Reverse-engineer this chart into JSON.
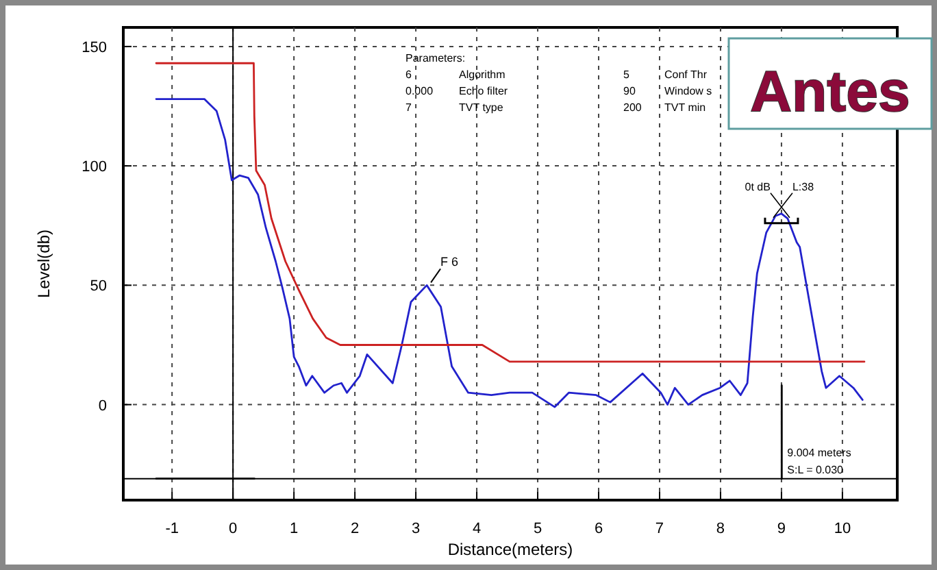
{
  "chart_data": {
    "type": "line",
    "xlabel": "Distance(meters)",
    "ylabel": "Level(db)",
    "xlim": [
      -1.8,
      10.9
    ],
    "ylim": [
      -40,
      158
    ],
    "xticks": [
      -1,
      0,
      1,
      2,
      3,
      4,
      5,
      6,
      7,
      8,
      9,
      10
    ],
    "yticks": [
      0,
      50,
      100,
      150
    ],
    "grid": true,
    "line_style": "solid",
    "marker": "none",
    "series": [
      {
        "color": "#2222cc",
        "x": [
          -1.26,
          -0.47,
          -0.27,
          -0.13,
          -0.02,
          0.11,
          0.25,
          0.41,
          0.54,
          0.7,
          0.81,
          0.93,
          1.0,
          1.08,
          1.2,
          1.3,
          1.5,
          1.65,
          1.78,
          1.87,
          2.08,
          2.2,
          2.62,
          2.77,
          2.92,
          3.18,
          3.41,
          3.59,
          3.86,
          4.24,
          4.54,
          4.91,
          5.28,
          5.51,
          5.96,
          6.19,
          6.72,
          7.02,
          7.13,
          7.25,
          7.47,
          7.7,
          7.99,
          8.15,
          8.33,
          8.44,
          8.53,
          8.6,
          8.75,
          8.9,
          9.0,
          9.1,
          9.25,
          9.3,
          9.5,
          9.66,
          9.73,
          9.95,
          10.18,
          10.33
        ],
        "values": [
          128,
          128,
          123,
          111,
          94,
          96,
          95,
          88,
          74,
          60,
          49,
          36,
          20,
          16,
          8,
          12,
          5,
          8,
          9,
          5,
          12,
          21,
          9,
          25,
          43,
          50,
          41,
          16,
          5,
          4,
          5,
          5,
          -1,
          5,
          4,
          1,
          13,
          5,
          0,
          7,
          0,
          4,
          7,
          10,
          4,
          9,
          37,
          55,
          72,
          79,
          80,
          78,
          68,
          66,
          37,
          14,
          7,
          12,
          7,
          2
        ]
      },
      {
        "color": "#cc2222",
        "x": [
          -1.26,
          0.34,
          0.35,
          0.38,
          0.52,
          0.63,
          0.86,
          1.08,
          1.31,
          1.53,
          1.76,
          4.09,
          4.54,
          10.36
        ],
        "values": [
          143,
          143,
          121,
          98,
          92,
          78,
          60,
          48,
          36,
          28,
          25,
          25,
          18,
          18
        ]
      },
      {
        "color": "#000000",
        "x": [
          -1.26,
          0.35
        ],
        "values": [
          -31,
          -31
        ]
      },
      {
        "color": "#000000",
        "x": [
          9.004,
          9.004
        ],
        "values": [
          -31,
          8
        ]
      }
    ],
    "ref_lines": [
      {
        "axis": "x",
        "value": 0,
        "color": "#000000",
        "line_style": "solid"
      },
      {
        "axis": "y",
        "value": -31,
        "color": "#000000",
        "line_style": "solid"
      }
    ],
    "annotations": [
      "Parameters:",
      "6",
      "Algorithm",
      "5",
      "Conf Thr",
      "0.000",
      "Echo filter",
      "90",
      "Window s",
      "7",
      "TVT type",
      "200",
      "TVT min",
      "Antes",
      {
        "text": "F 6",
        "x": 3.18,
        "y": 50
      },
      {
        "text": "0t dB",
        "x": 9,
        "y": 76
      },
      {
        "text": "L:38",
        "x": 9,
        "y": 76
      },
      {
        "text": "9.004 meters",
        "x": 9.004,
        "y": -20
      },
      {
        "text": "S:L = 0.030",
        "x": 9.004,
        "y": -27
      }
    ]
  }
}
